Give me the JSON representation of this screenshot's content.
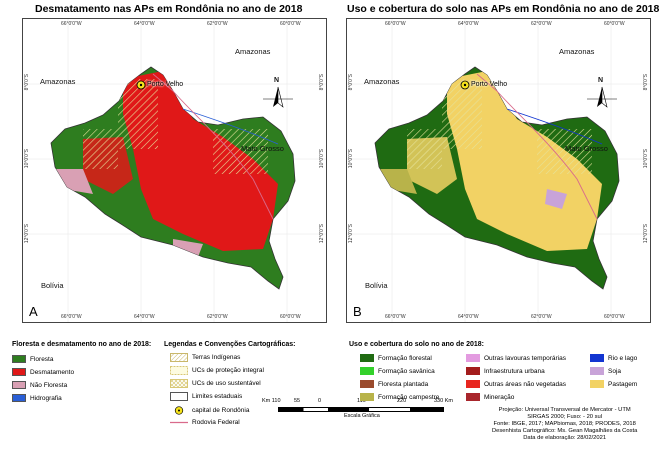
{
  "left_map": {
    "title": "Desmatamento nas APs em Rondônia no ano de 2018",
    "panel_letter": "A",
    "graticule_top": [
      "66°0'0\"W",
      "64°0'0\"W",
      "62°0'0\"W",
      "60°0'0\"W"
    ],
    "graticule_bottom": [
      "66°0'0\"W",
      "64°0'0\"W",
      "62°0'0\"W",
      "60°0'0\"W"
    ],
    "graticule_left": [
      "8°0'0\"S",
      "10°0'0\"S",
      "12°0'0\"S"
    ],
    "graticule_right": [
      "8°0'0\"S",
      "10°0'0\"S",
      "12°0'0\"S"
    ],
    "places": {
      "amazonas_nw": "Amazonas",
      "amazonas_ne": "Amazonas",
      "mato_grosso": "Mato Grosso",
      "bolivia": "Bolívia",
      "porto_velho": "Porto Velho"
    },
    "north": "N"
  },
  "right_map": {
    "title": "Uso e cobertura do solo nas APs em Rondônia no ano de 2018",
    "panel_letter": "B",
    "graticule_top": [
      "66°0'0\"W",
      "64°0'0\"W",
      "62°0'0\"W",
      "60°0'0\"W"
    ],
    "graticule_bottom": [
      "66°0'0\"W",
      "64°0'0\"W",
      "62°0'0\"W",
      "60°0'0\"W"
    ],
    "graticule_left": [
      "8°0'0\"S",
      "10°0'0\"S",
      "12°0'0\"S"
    ],
    "graticule_right": [
      "8°0'0\"S",
      "10°0'0\"S",
      "12°0'0\"S"
    ],
    "places": {
      "amazonas_nw": "Amazonas",
      "amazonas_ne": "Amazonas",
      "mato_grosso": "Mato Grosso",
      "bolivia": "Bolívia",
      "porto_velho": "Porto Velho"
    },
    "north": "N"
  },
  "legend_deforest": {
    "title": "Floresta e desmatamento no ano de 2018:",
    "items": [
      {
        "label": "Floresta",
        "color": "#2e7d1f"
      },
      {
        "label": "Desmatamento",
        "color": "#e01818"
      },
      {
        "label": "Não Floresta",
        "color": "#d9a0b4"
      },
      {
        "label": "Hidrografia",
        "color": "#2a5fd6"
      }
    ]
  },
  "legend_conventions": {
    "title": "Legendas e Convenções Cartográficas:",
    "items": [
      {
        "label": "Terras Indígenas",
        "kind": "hatch-ti"
      },
      {
        "label": "UCs de proteção integral",
        "kind": "hatch-pi"
      },
      {
        "label": "UCs de uso sustentável",
        "kind": "hatch-us"
      },
      {
        "label": "Limites estaduais",
        "kind": "boundary"
      },
      {
        "label": "capital de Rondônia",
        "kind": "capital"
      },
      {
        "label": "Rodovia Federal",
        "kind": "road"
      }
    ]
  },
  "legend_landuse": {
    "title": "Uso e cobertura do solo no ano de 2018:",
    "col1": [
      {
        "label": "Formação florestal",
        "color": "#1f6b12"
      },
      {
        "label": "Formação savânica",
        "color": "#33d12b"
      },
      {
        "label": "Floresta plantada",
        "color": "#9a4a2c"
      },
      {
        "label": "Formação campestre",
        "color": "#b8b34a"
      }
    ],
    "col2": [
      {
        "label": "Outras lavouras temporárias",
        "color": "#e39be0"
      },
      {
        "label": "Infraestrutura urbana",
        "color": "#a31d1d"
      },
      {
        "label": "Outras áreas não vegetadas",
        "color": "#e8261f"
      },
      {
        "label": "Mineração",
        "color": "#a8262c"
      }
    ],
    "col3": [
      {
        "label": "Rio e lago",
        "color": "#1235d1"
      },
      {
        "label": "Soja",
        "color": "#c8a3d8"
      },
      {
        "label": "Pastagem",
        "color": "#f2d264"
      }
    ]
  },
  "scale": {
    "ticks": [
      "Km 110",
      "55",
      "0",
      "110",
      "220",
      "330 Km"
    ],
    "caption": "Escala Gráfica"
  },
  "credits": [
    "Projeção: Universal Transversal de Mercator - UTM",
    "SIRGAS 2000; Fuso: - 20 sul",
    "Fonte: IBGE, 2017; MAPbiomas, 2018; PRODES, 2018",
    "Desenhista Cartográfico: Ms. Gean Magalhães da Costa",
    "Data de elaboração: 28/02/2021"
  ]
}
